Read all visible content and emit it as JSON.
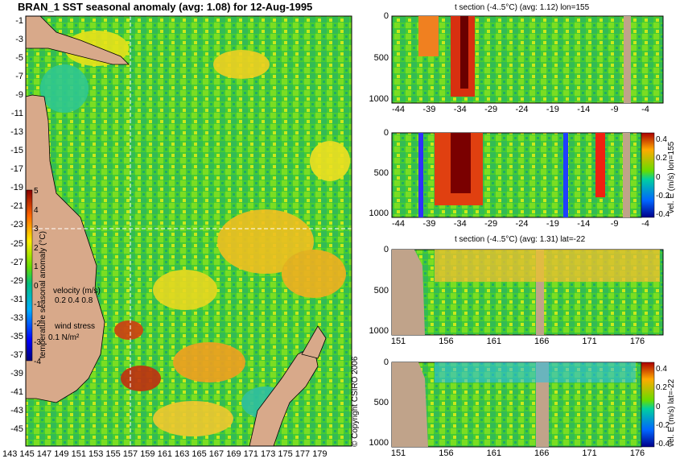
{
  "chart_data": [
    {
      "type": "heatmap",
      "title": "BRAN_1  SST seasonal anomaly  (avg: 1.08) for 12-Aug-1995",
      "y_ticks": [
        "-1",
        "-3",
        "-5",
        "-7",
        "-9",
        "-11",
        "-13",
        "-15",
        "-17",
        "-19",
        "-21",
        "-23",
        "-25",
        "-27",
        "-29",
        "-31",
        "-33",
        "-35",
        "-37",
        "-39",
        "-41",
        "-43",
        "-45"
      ],
      "x_ticks": [
        "143",
        "145",
        "147",
        "149",
        "151",
        "153",
        "155",
        "157",
        "159",
        "161",
        "163",
        "165",
        "167",
        "169",
        "171",
        "173",
        "175",
        "177",
        "179"
      ],
      "xlim": [
        143,
        180
      ],
      "ylim": [
        -45,
        0
      ],
      "crosshair": {
        "lon": 155,
        "lat": -22
      },
      "colorbar": {
        "label": "temperature seasonal anomaly (°C)",
        "ticks": [
          "5",
          "4",
          "3",
          "2",
          "1",
          "0",
          "-1",
          "-2",
          "-3",
          "-4"
        ],
        "range": [
          -4,
          5
        ]
      },
      "velocity_legend": {
        "title": "velocity (m/s)",
        "values": "0.2 0.4 0.8"
      },
      "wind_legend": {
        "title": "wind stress",
        "value": "0.1 N/m²"
      }
    },
    {
      "type": "heatmap",
      "title": "t section (-4..5°C) (avg: 1.12) lon=155",
      "x_ticks": [
        "-44",
        "-39",
        "-34",
        "-29",
        "-24",
        "-19",
        "-14",
        "-9",
        "-4"
      ],
      "y_ticks": [
        "0",
        "500",
        "1000"
      ],
      "xlim": [
        -45,
        0
      ],
      "ylim": [
        1050,
        0
      ]
    },
    {
      "type": "heatmap",
      "title": "",
      "x_ticks": [
        "-44",
        "-39",
        "-34",
        "-29",
        "-24",
        "-19",
        "-14",
        "-9",
        "-4"
      ],
      "y_ticks": [
        "0",
        "500",
        "1000"
      ],
      "xlim": [
        -45,
        0
      ],
      "ylim": [
        1050,
        0
      ],
      "colorbar": {
        "label": "vel. E (m/s) lon=155",
        "ticks": [
          "0.4",
          "0.2",
          "0",
          "-0.2",
          "-0.4"
        ],
        "range": [
          -0.4,
          0.4
        ]
      }
    },
    {
      "type": "heatmap",
      "title": "t section (-4..5°C) (avg: 1.31) lat=-22",
      "x_ticks": [
        "151",
        "156",
        "161",
        "166",
        "171",
        "176"
      ],
      "y_ticks": [
        "0",
        "500",
        "1000"
      ],
      "xlim": [
        150,
        180
      ],
      "ylim": [
        1050,
        0
      ]
    },
    {
      "type": "heatmap",
      "title": "",
      "x_ticks": [
        "151",
        "156",
        "161",
        "166",
        "171",
        "176"
      ],
      "y_ticks": [
        "0",
        "500",
        "1000"
      ],
      "xlim": [
        150,
        180
      ],
      "ylim": [
        1050,
        0
      ],
      "colorbar": {
        "label": "vel. E (m/s) lat=-22",
        "ticks": [
          "0.4",
          "0.2",
          "0",
          "-0.2",
          "-0.4"
        ],
        "range": [
          -0.4,
          0.4
        ]
      }
    }
  ],
  "copyright": "© Copyright CSIRO 2006",
  "colors": {
    "land": "#d8a98a",
    "section_land": "#c0a38a",
    "bg": "#ffffff"
  }
}
